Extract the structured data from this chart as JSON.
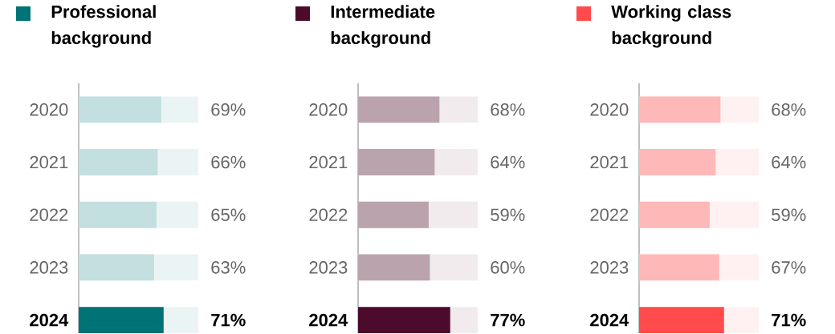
{
  "chart_data": [
    {
      "type": "bar",
      "orientation": "horizontal",
      "title": "Professional background",
      "color": "#007377",
      "categories": [
        "2020",
        "2021",
        "2022",
        "2023",
        "2024"
      ],
      "values": [
        69,
        66,
        65,
        63,
        71
      ],
      "value_labels": [
        "69%",
        "66%",
        "65%",
        "63%",
        "71%"
      ],
      "colors": [
        "#c3dfe0",
        "#c3dfe0",
        "#c3dfe0",
        "#c3dfe0",
        "#007377"
      ],
      "xlim": [
        0,
        100
      ]
    },
    {
      "type": "bar",
      "orientation": "horizontal",
      "title": "Intermediate background",
      "color": "#4c0a2c",
      "categories": [
        "2020",
        "2021",
        "2022",
        "2023",
        "2024"
      ],
      "values": [
        68,
        64,
        59,
        60,
        77
      ],
      "value_labels": [
        "68%",
        "64%",
        "59%",
        "60%",
        "77%"
      ],
      "colors": [
        "#bba3ad",
        "#bba3ad",
        "#bba3ad",
        "#bba3ad",
        "#4c0a2c"
      ],
      "xlim": [
        0,
        100
      ]
    },
    {
      "type": "bar",
      "orientation": "horizontal",
      "title": "Working class background",
      "color": "#ff4b4b",
      "categories": [
        "2020",
        "2021",
        "2022",
        "2023",
        "2024"
      ],
      "values": [
        68,
        64,
        59,
        67,
        71
      ],
      "value_labels": [
        "68%",
        "64%",
        "59%",
        "67%",
        "71%"
      ],
      "colors": [
        "#ffb8b8",
        "#ffb8b8",
        "#ffb8b8",
        "#ffb8b8",
        "#ff4b4b"
      ],
      "xlim": [
        0,
        100
      ]
    }
  ]
}
